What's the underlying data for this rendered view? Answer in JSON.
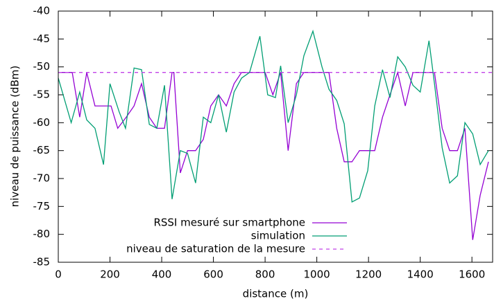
{
  "chart_data": {
    "type": "line",
    "x_label": "distance (m)",
    "y_label": "niveau de puissance (dBm)",
    "xlim": [
      0,
      1680
    ],
    "ylim": [
      -85,
      -40
    ],
    "xticks": [
      0,
      200,
      400,
      600,
      800,
      1000,
      1200,
      1400,
      1600
    ],
    "yticks": [
      -85,
      -80,
      -75,
      -70,
      -65,
      -60,
      -55,
      -50,
      -45,
      -40
    ],
    "legend": "bottom-center",
    "series": [
      {
        "name": "RSSI mesuré sur smartphone",
        "color": "#9400d3",
        "dashed": false,
        "x": [
          0,
          54,
          83,
          110,
          142,
          204,
          230,
          263,
          293,
          322,
          352,
          381,
          411,
          440,
          447,
          472,
          500,
          531,
          561,
          590,
          620,
          650,
          680,
          709,
          800,
          830,
          860,
          889,
          921,
          950,
          1047,
          1077,
          1106,
          1136,
          1165,
          1197,
          1224,
          1254,
          1283,
          1313,
          1342,
          1372,
          1455,
          1485,
          1514,
          1544,
          1573,
          1603,
          1632,
          1664
        ],
        "values": [
          -51,
          -51,
          -59,
          -51,
          -57,
          -57,
          -61,
          -59,
          -57,
          -53,
          -59,
          -61,
          -61,
          -51,
          -51,
          -69,
          -65,
          -65,
          -63,
          -57,
          -55,
          -57,
          -53,
          -51,
          -51,
          -55,
          -51,
          -65,
          -53,
          -51,
          -51,
          -61,
          -67,
          -67,
          -65,
          -65,
          -65,
          -59,
          -55,
          -51,
          -57,
          -51,
          -51,
          -61,
          -65,
          -65,
          -61,
          -81,
          -73,
          -67
        ]
      },
      {
        "name": "simulation",
        "color": "#009e73",
        "dashed": false,
        "x": [
          0,
          50,
          83,
          110,
          142,
          175,
          200,
          235,
          260,
          293,
          322,
          352,
          381,
          411,
          440,
          472,
          500,
          531,
          561,
          590,
          620,
          650,
          680,
          709,
          740,
          780,
          810,
          840,
          860,
          889,
          921,
          950,
          985,
          1020,
          1047,
          1077,
          1106,
          1136,
          1165,
          1197,
          1224,
          1254,
          1283,
          1313,
          1342,
          1372,
          1400,
          1434,
          1455,
          1485,
          1514,
          1544,
          1573,
          1603,
          1632,
          1664
        ],
        "values": [
          -52,
          -60,
          -54.5,
          -59.5,
          -61,
          -67.5,
          -53,
          -58,
          -61,
          -50.2,
          -50.5,
          -60.3,
          -61,
          -53.3,
          -73.7,
          -65,
          -65.5,
          -70.8,
          -59,
          -60,
          -55,
          -61.7,
          -54.5,
          -52,
          -51,
          -44.5,
          -55,
          -55.5,
          -49.8,
          -60,
          -55,
          -48,
          -43.6,
          -50,
          -54,
          -56,
          -60.2,
          -74.2,
          -73.5,
          -68.6,
          -57,
          -50.5,
          -55.5,
          -48.2,
          -50,
          -53.3,
          -54.5,
          -45.3,
          -53,
          -64.5,
          -70.8,
          -69.5,
          -60,
          -62,
          -67.5,
          -65
        ]
      },
      {
        "name": "niveau de saturation de la mesure",
        "color": "#c040e8",
        "dashed": true,
        "x": [
          0,
          1680
        ],
        "values": [
          -51,
          -51
        ]
      }
    ]
  }
}
